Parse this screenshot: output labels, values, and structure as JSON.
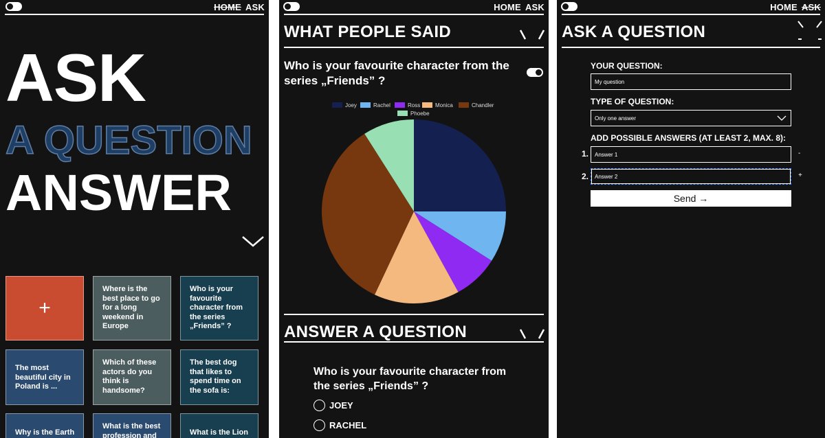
{
  "panels": {
    "home": {
      "nav": {
        "home": "HOME",
        "ask": "ASK"
      },
      "hero": {
        "line1": "ASK",
        "line2": "A QUESTION",
        "line3": "ANSWER"
      },
      "tiles": [
        {
          "label": "+"
        },
        {
          "label": "Where is the best place to go for a long weekend in Europe"
        },
        {
          "label": "Who is your favourite character from the series „Friends” ?"
        },
        {
          "label": "The most beautiful city in Poland is ..."
        },
        {
          "label": "Which of these actors do you think is handsome?"
        },
        {
          "label": "The best dog that likes to spend time on the sofa is:"
        },
        {
          "label": "Why is the Earth"
        },
        {
          "label": "What is the best profession and"
        },
        {
          "label": "What is the Lion"
        }
      ]
    },
    "results": {
      "nav": {
        "home": "HOME",
        "ask": "ASK"
      },
      "section_title": "WHAT PEOPLE SAID",
      "question": "Who is your favourite character from the series „Friends” ?",
      "answer_section_title": "ANSWER A QUESTION",
      "answer_question": "Who is your favourite character from the series „Friends” ?",
      "options": [
        "JOEY",
        "RACHEL"
      ]
    },
    "ask": {
      "nav": {
        "home": "HOME",
        "ask": "ASK"
      },
      "title": "ASK A QUESTION",
      "your_question_label": "YOUR QUESTION:",
      "your_question_value": "My question",
      "type_label": "TYPE OF QUESTION:",
      "type_value": "Only one answer",
      "answers_label": "ADD POSSIBLE ANSWERS (AT LEAST 2, MAX. 8):",
      "answers": [
        {
          "num": "1.",
          "value": "Answer 1",
          "action": "-"
        },
        {
          "num": "2.",
          "value": "Answer 2",
          "action": "+"
        }
      ],
      "send_label": "Send →"
    }
  },
  "colors": {
    "background": "#131313",
    "accent_red": "#c94c31",
    "tile_blue": "#2a4a70",
    "tile_gray": "#4b5d5f",
    "tile_teal": "#173f50"
  },
  "chart_data": {
    "type": "pie",
    "categories": [
      "Joey",
      "Rachel",
      "Ross",
      "Monica",
      "Chandler",
      "Phoebe"
    ],
    "values": [
      25,
      9,
      8,
      15,
      34,
      9
    ],
    "colors": [
      "#142150",
      "#6fb5f0",
      "#8e2af2",
      "#f4b97e",
      "#77370f",
      "#98dfb4"
    ],
    "legend_position": "top"
  }
}
